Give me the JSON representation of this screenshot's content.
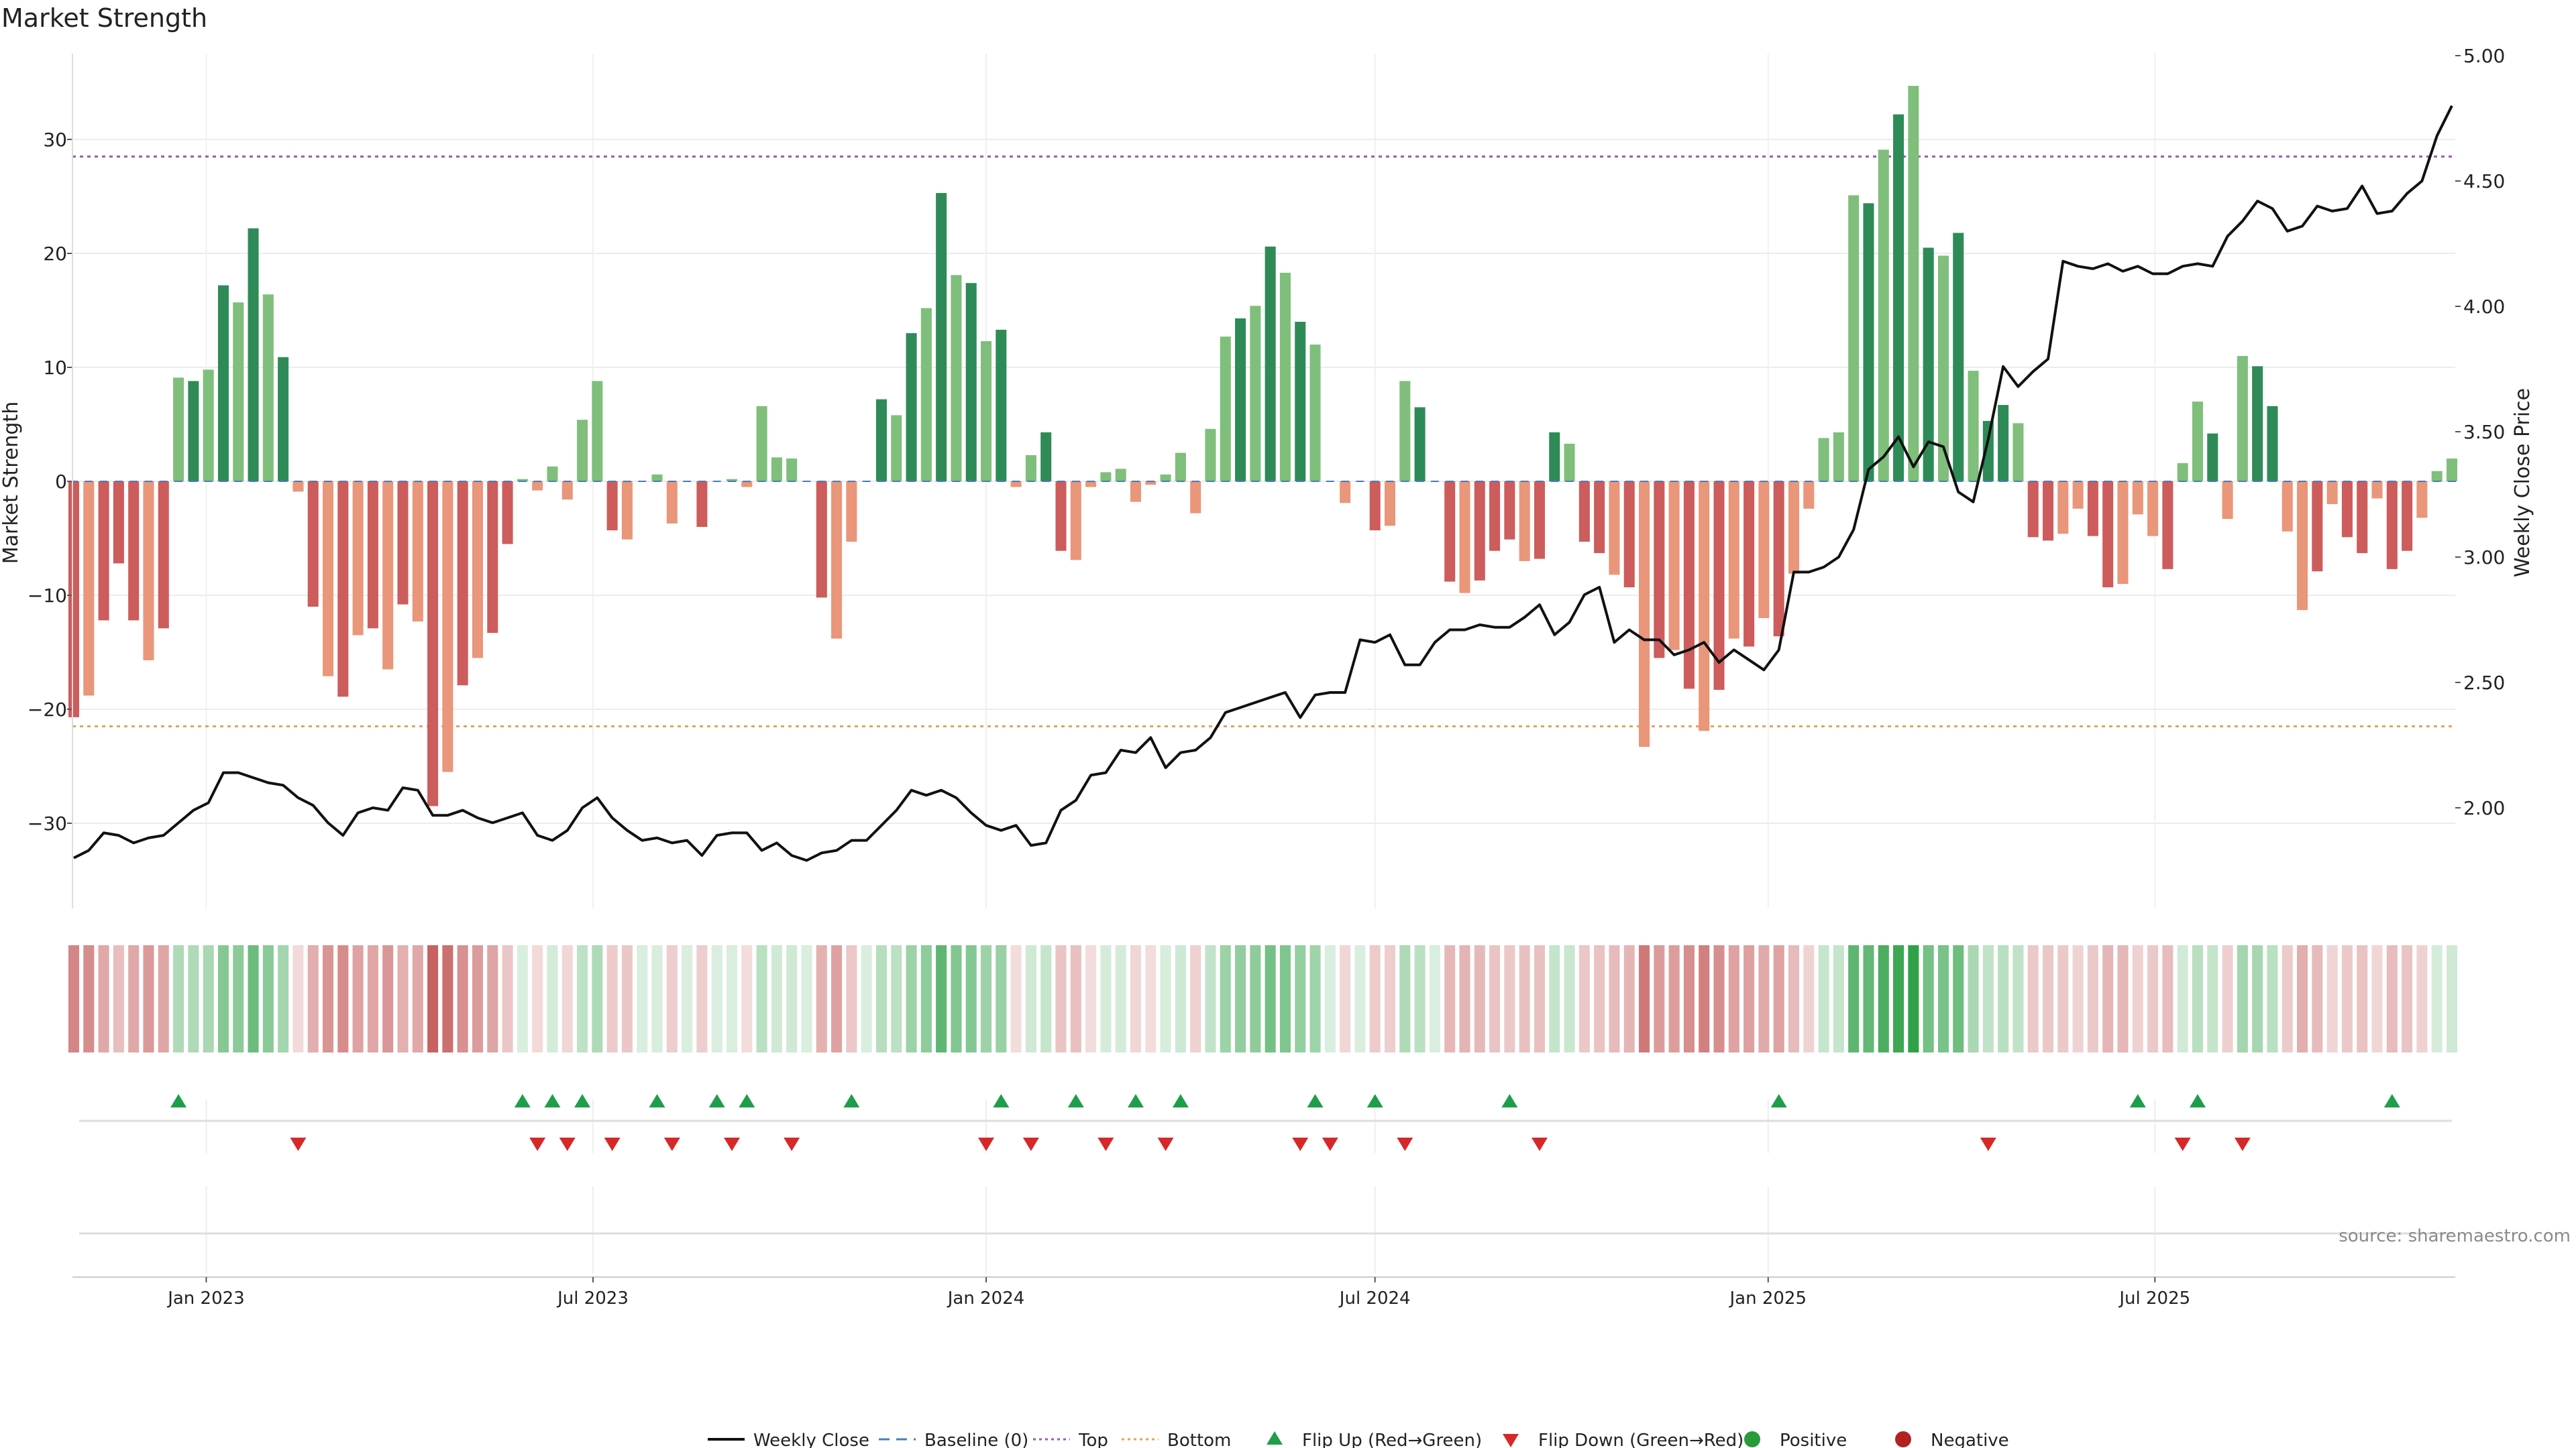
{
  "chart_data": {
    "type": "bar",
    "title": "Market Strength",
    "ylabel_left": "Market Strength",
    "ylabel_right": "Weekly Close Price",
    "source": "source: sharemaestro.com",
    "ylim_left": [
      -38,
      38
    ],
    "ylim_right": [
      1.6,
      5.0
    ],
    "yticks_left": [
      "30",
      "20",
      "10",
      "0",
      "−10",
      "−20",
      "−30"
    ],
    "yticks_right": [
      "5.00",
      "4.50",
      "4.00",
      "3.50",
      "3.00",
      "2.50",
      "2.00"
    ],
    "xticks": [
      "Jan 2023",
      "Jul 2023",
      "Jan 2024",
      "Jul 2024",
      "Jan 2025",
      "Jul 2025"
    ],
    "x_start": "2022-10-31",
    "top_threshold": 28.5,
    "bottom_threshold": -21.5,
    "strength": [
      -20.7,
      -18.8,
      -12.2,
      -7.2,
      -12.2,
      -15.7,
      -12.9,
      9.1,
      8.8,
      9.8,
      17.2,
      15.7,
      22.2,
      16.4,
      10.9,
      -0.9,
      -11.0,
      -17.1,
      -18.9,
      -13.5,
      -12.9,
      -16.5,
      -10.8,
      -12.3,
      -28.5,
      -25.5,
      -17.9,
      -15.5,
      -13.3,
      -5.5,
      0.2,
      -0.8,
      1.3,
      -1.6,
      5.4,
      8.8,
      -4.3,
      -5.1,
      0.0,
      0.6,
      -3.7,
      0.0,
      -4.0,
      0.0,
      0.2,
      -0.5,
      6.6,
      2.1,
      2.0,
      0.0,
      -10.2,
      -13.8,
      -5.3,
      0.0,
      7.2,
      5.8,
      13.0,
      15.2,
      25.3,
      18.1,
      17.4,
      12.3,
      13.3,
      -0.5,
      2.3,
      4.3,
      -6.1,
      -6.9,
      -0.5,
      0.8,
      1.1,
      -1.8,
      -0.3,
      0.6,
      2.5,
      -2.8,
      4.6,
      12.7,
      14.3,
      15.4,
      20.6,
      18.3,
      14.0,
      12.0,
      0.0,
      -1.9,
      0.0,
      -4.3,
      -3.9,
      8.8,
      6.5,
      0.0,
      -8.8,
      -9.8,
      -8.7,
      -6.1,
      -5.1,
      -7.0,
      -6.8,
      4.3,
      3.3,
      -5.3,
      -6.3,
      -8.2,
      -9.3,
      -23.3,
      -15.5,
      -14.8,
      -18.2,
      -21.9,
      -18.3,
      -13.8,
      -14.5,
      -12.0,
      -13.6,
      -8.1,
      -2.4,
      3.8,
      4.3,
      25.1,
      24.4,
      29.1,
      32.2,
      34.7,
      20.5,
      19.8,
      21.8,
      9.7,
      5.3,
      6.7,
      5.1,
      -4.9,
      -5.2,
      -4.6,
      -2.4,
      -4.8,
      -9.3,
      -9.0,
      -2.9,
      -4.8,
      -7.7,
      1.6,
      7.0,
      4.2,
      -3.3,
      11.0,
      10.1,
      6.6,
      -4.4,
      -11.3,
      -7.9,
      -2.0,
      -4.9,
      -6.3,
      -1.5,
      -7.7,
      -6.1,
      -3.2,
      0.9,
      2.0
    ],
    "close": [
      1.8,
      1.83,
      1.9,
      1.89,
      1.86,
      1.88,
      1.89,
      1.94,
      1.99,
      2.02,
      2.14,
      2.14,
      2.12,
      2.1,
      2.09,
      2.04,
      2.01,
      1.94,
      1.89,
      1.98,
      2.0,
      1.99,
      2.08,
      2.07,
      1.97,
      1.97,
      1.99,
      1.96,
      1.94,
      1.96,
      1.98,
      1.89,
      1.87,
      1.91,
      2.0,
      2.04,
      1.96,
      1.91,
      1.87,
      1.88,
      1.86,
      1.87,
      1.81,
      1.89,
      1.9,
      1.9,
      1.83,
      1.86,
      1.81,
      1.79,
      1.82,
      1.83,
      1.87,
      1.87,
      1.93,
      1.99,
      2.07,
      2.05,
      2.07,
      2.04,
      1.98,
      1.93,
      1.91,
      1.93,
      1.85,
      1.86,
      1.99,
      2.03,
      2.13,
      2.14,
      2.23,
      2.22,
      2.28,
      2.16,
      2.22,
      2.23,
      2.28,
      2.38,
      2.4,
      2.42,
      2.44,
      2.46,
      2.36,
      2.45,
      2.46,
      2.46,
      2.67,
      2.66,
      2.69,
      2.57,
      2.57,
      2.66,
      2.71,
      2.71,
      2.73,
      2.72,
      2.72,
      2.76,
      2.81,
      2.69,
      2.74,
      2.85,
      2.88,
      2.66,
      2.71,
      2.67,
      2.67,
      2.61,
      2.63,
      2.66,
      2.58,
      2.63,
      2.59,
      2.55,
      2.63,
      2.94,
      2.94,
      2.96,
      3.0,
      3.11,
      3.35,
      3.4,
      3.48,
      3.36,
      3.46,
      3.44,
      3.26,
      3.22,
      3.47,
      3.76,
      3.68,
      3.74,
      3.79,
      4.18,
      4.16,
      4.15,
      4.17,
      4.14,
      4.16,
      4.13,
      4.13,
      4.16,
      4.17,
      4.16,
      4.28,
      4.34,
      4.42,
      4.39,
      4.3,
      4.32,
      4.4,
      4.38,
      4.39,
      4.48,
      4.37,
      4.38,
      4.45,
      4.5,
      4.68,
      4.8
    ],
    "heat_strip": "Market strength heatmap (red = negative, green = positive)",
    "flip_up_index": [
      7,
      30,
      32,
      34,
      39,
      43,
      45,
      52,
      62,
      67,
      71,
      74,
      83,
      87,
      96,
      114,
      138,
      142,
      155
    ],
    "flip_down_index": [
      15,
      31,
      33,
      36,
      40,
      44,
      48,
      61,
      64,
      69,
      73,
      82,
      84,
      89,
      98,
      128,
      141,
      145
    ],
    "legend": [
      {
        "label": "Weekly Close",
        "kind": "line",
        "color": "#111111"
      },
      {
        "label": "Baseline (0)",
        "kind": "dash",
        "color": "#4a7bb7"
      },
      {
        "label": "Top",
        "kind": "dot",
        "color": "#9b59b6"
      },
      {
        "label": "Bottom",
        "kind": "dot",
        "color": "#e6a15c"
      },
      {
        "label": "Flip Up (Red→Green)",
        "kind": "tri-up",
        "color": "#1e9e4a"
      },
      {
        "label": "Flip Down (Green→Red)",
        "kind": "tri-down",
        "color": "#d62828"
      },
      {
        "label": "Positive",
        "kind": "circle",
        "color": "#2a9a3a"
      },
      {
        "label": "Negative",
        "kind": "circle",
        "color": "#b22222"
      }
    ],
    "colors": {
      "pos_strong": "#2e8b57",
      "pos_light": "#7fbf7b",
      "neg_strong": "#cd5c5c",
      "neg_light": "#e9967a",
      "line": "#111111"
    }
  }
}
